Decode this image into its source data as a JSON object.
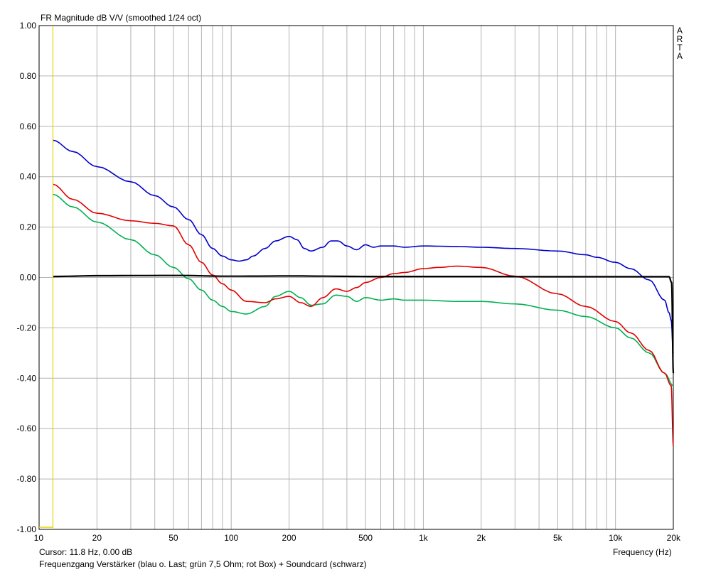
{
  "chart_data": {
    "type": "line",
    "title": "FR Magnitude dB V/V (smoothed 1/24 oct)",
    "brand_letters": [
      "A",
      "R",
      "T",
      "A"
    ],
    "xlabel": "Frequency (Hz)",
    "x_scale": "log",
    "xlim": [
      10,
      20000
    ],
    "ylim": [
      -1.0,
      1.0
    ],
    "grid": true,
    "y_ticks": [
      1.0,
      0.8,
      0.6,
      0.4,
      0.2,
      0.0,
      -0.2,
      -0.4,
      -0.6,
      -0.8,
      -1.0
    ],
    "y_tick_labels": [
      "1.00",
      "0.80",
      "0.60",
      "0.40",
      "0.20",
      "0.00",
      "-0.20",
      "-0.40",
      "-0.60",
      "-0.80",
      "-1.00"
    ],
    "x_ticks": [
      10,
      20,
      50,
      100,
      200,
      500,
      1000,
      2000,
      5000,
      10000,
      20000
    ],
    "x_tick_labels": [
      "10",
      "20",
      "50",
      "100",
      "200",
      "500",
      "1k",
      "2k",
      "5k",
      "10k",
      "20k"
    ],
    "cursor": {
      "x": 11.8,
      "color": "#e6d400",
      "readout": "Cursor: 11.8 Hz, 0.00 dB"
    },
    "caption": "Frequenzgang Verstärker (blau o. Last; grün 7,5 Ohm; rot Box) + Soundcard (schwarz)",
    "series": [
      {
        "color": "#0000cc",
        "x": [
          11.8,
          15,
          20,
          30,
          40,
          50,
          60,
          70,
          80,
          90,
          100,
          110,
          120,
          130,
          150,
          170,
          200,
          220,
          240,
          260,
          300,
          330,
          360,
          400,
          450,
          500,
          550,
          600,
          700,
          800,
          1000,
          1500,
          2000,
          3000,
          5000,
          7000,
          8000,
          10000,
          12000,
          15000,
          18000,
          19000,
          19500,
          20000
        ],
        "y": [
          0.545,
          0.5,
          0.44,
          0.38,
          0.325,
          0.28,
          0.23,
          0.17,
          0.115,
          0.085,
          0.07,
          0.065,
          0.07,
          0.085,
          0.115,
          0.145,
          0.163,
          0.15,
          0.115,
          0.105,
          0.12,
          0.145,
          0.145,
          0.125,
          0.11,
          0.13,
          0.12,
          0.125,
          0.125,
          0.12,
          0.125,
          0.123,
          0.12,
          0.115,
          0.105,
          0.09,
          0.08,
          0.06,
          0.035,
          -0.01,
          -0.09,
          -0.14,
          -0.17,
          -0.3
        ]
      },
      {
        "color": "#00b050",
        "x": [
          11.8,
          15,
          20,
          30,
          40,
          50,
          60,
          70,
          80,
          90,
          100,
          120,
          150,
          170,
          200,
          230,
          260,
          300,
          350,
          400,
          450,
          500,
          600,
          700,
          800,
          1000,
          1500,
          2000,
          3000,
          5000,
          7000,
          10000,
          12000,
          15000,
          18000,
          20000
        ],
        "y": [
          0.33,
          0.28,
          0.22,
          0.15,
          0.09,
          0.04,
          -0.005,
          -0.05,
          -0.09,
          -0.115,
          -0.135,
          -0.145,
          -0.115,
          -0.075,
          -0.055,
          -0.08,
          -0.11,
          -0.105,
          -0.07,
          -0.075,
          -0.095,
          -0.08,
          -0.09,
          -0.085,
          -0.09,
          -0.09,
          -0.095,
          -0.095,
          -0.105,
          -0.13,
          -0.155,
          -0.2,
          -0.24,
          -0.3,
          -0.38,
          -0.43
        ]
      },
      {
        "color": "#e00000",
        "x": [
          11.8,
          15,
          20,
          30,
          40,
          50,
          60,
          70,
          80,
          90,
          100,
          120,
          150,
          170,
          200,
          230,
          260,
          300,
          350,
          400,
          450,
          500,
          600,
          700,
          800,
          1000,
          1200,
          1500,
          2000,
          3000,
          5000,
          7000,
          10000,
          12000,
          15000,
          18000,
          19500,
          20000
        ],
        "y": [
          0.37,
          0.31,
          0.255,
          0.225,
          0.215,
          0.205,
          0.13,
          0.06,
          0.01,
          -0.025,
          -0.05,
          -0.095,
          -0.1,
          -0.085,
          -0.075,
          -0.1,
          -0.115,
          -0.08,
          -0.045,
          -0.055,
          -0.04,
          -0.02,
          0.0,
          0.015,
          0.02,
          0.035,
          0.04,
          0.045,
          0.04,
          0.005,
          -0.065,
          -0.115,
          -0.175,
          -0.22,
          -0.29,
          -0.38,
          -0.43,
          -0.67
        ]
      },
      {
        "color": "#000000",
        "x": [
          11.8,
          20,
          50,
          100,
          200,
          500,
          1000,
          2000,
          5000,
          10000,
          19000,
          19600,
          20000
        ],
        "y": [
          0.004,
          0.007,
          0.008,
          0.005,
          0.006,
          0.004,
          0.004,
          0.004,
          0.003,
          0.003,
          0.003,
          -0.02,
          -0.38
        ]
      }
    ]
  }
}
